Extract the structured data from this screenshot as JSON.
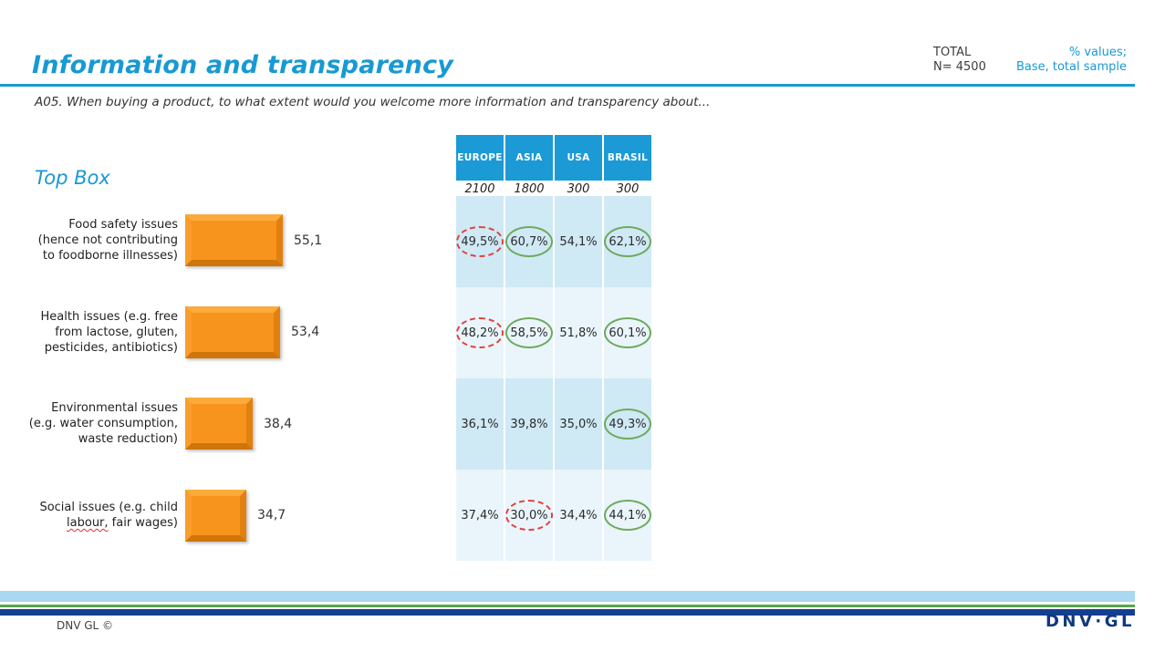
{
  "header": {
    "title": "Information and transparency",
    "total_label": "TOTAL",
    "total_n": "N= 4500",
    "values_note": "% values;",
    "base_note": "Base, total sample"
  },
  "question": "A05. When buying a product, to what extent would you welcome more information and transparency about...",
  "section_label": "Top Box",
  "chart_data": [
    {
      "type": "bar",
      "orientation": "horizontal",
      "title": "Top Box",
      "categories": [
        "Food safety issues (hence not contributing to foodborne illnesses)",
        "Health issues (e.g. free from lactose, gluten, pesticides, antibiotics)",
        "Environmental issues (e.g. water consumption, waste reduction)",
        "Social issues (e.g. child labour, fair wages)"
      ],
      "values": [
        55.1,
        53.4,
        38.4,
        34.7
      ],
      "value_labels": [
        "55,1",
        "53,4",
        "38,4",
        "34,7"
      ],
      "bar_color": "#f7941e",
      "xlim": [
        0,
        60
      ],
      "grid": false,
      "legend": "none",
      "spellcheck_underline_word": "labour,"
    },
    {
      "type": "table",
      "columns": [
        "EUROPE",
        "ASIA",
        "USA",
        "BRASIL"
      ],
      "bases": [
        "2100",
        "1800",
        "300",
        "300"
      ],
      "rows": [
        {
          "values": [
            "49,5%",
            "60,7%",
            "54,1%",
            "62,1%"
          ],
          "marks": [
            "low",
            "high",
            "none",
            "high"
          ]
        },
        {
          "values": [
            "48,2%",
            "58,5%",
            "51,8%",
            "60,1%"
          ],
          "marks": [
            "low",
            "high",
            "none",
            "high"
          ]
        },
        {
          "values": [
            "36,1%",
            "39,8%",
            "35,0%",
            "49,3%"
          ],
          "marks": [
            "none",
            "none",
            "none",
            "high"
          ]
        },
        {
          "values": [
            "37,4%",
            "30,0%",
            "34,4%",
            "44,1%"
          ],
          "marks": [
            "none",
            "low",
            "none",
            "high"
          ]
        }
      ],
      "mark_styles": {
        "high": "green-solid-ellipse",
        "low": "red-dashed-ellipse",
        "none": "no-ellipse"
      }
    }
  ],
  "footer": {
    "copyright": "DNV GL ©",
    "logo": "DNV·GL"
  },
  "colors": {
    "accent_blue": "#1899d3",
    "table_header_blue": "#1b9ad6",
    "row_dark": "#cfe9f5",
    "row_light": "#e9f5fb",
    "bar_orange": "#f7941e",
    "ellipse_green": "#6fa95c",
    "ellipse_red": "#e4403f",
    "stripe_light_blue": "#a8d9f0",
    "stripe_green": "#55a74d",
    "stripe_navy": "#133f90"
  }
}
